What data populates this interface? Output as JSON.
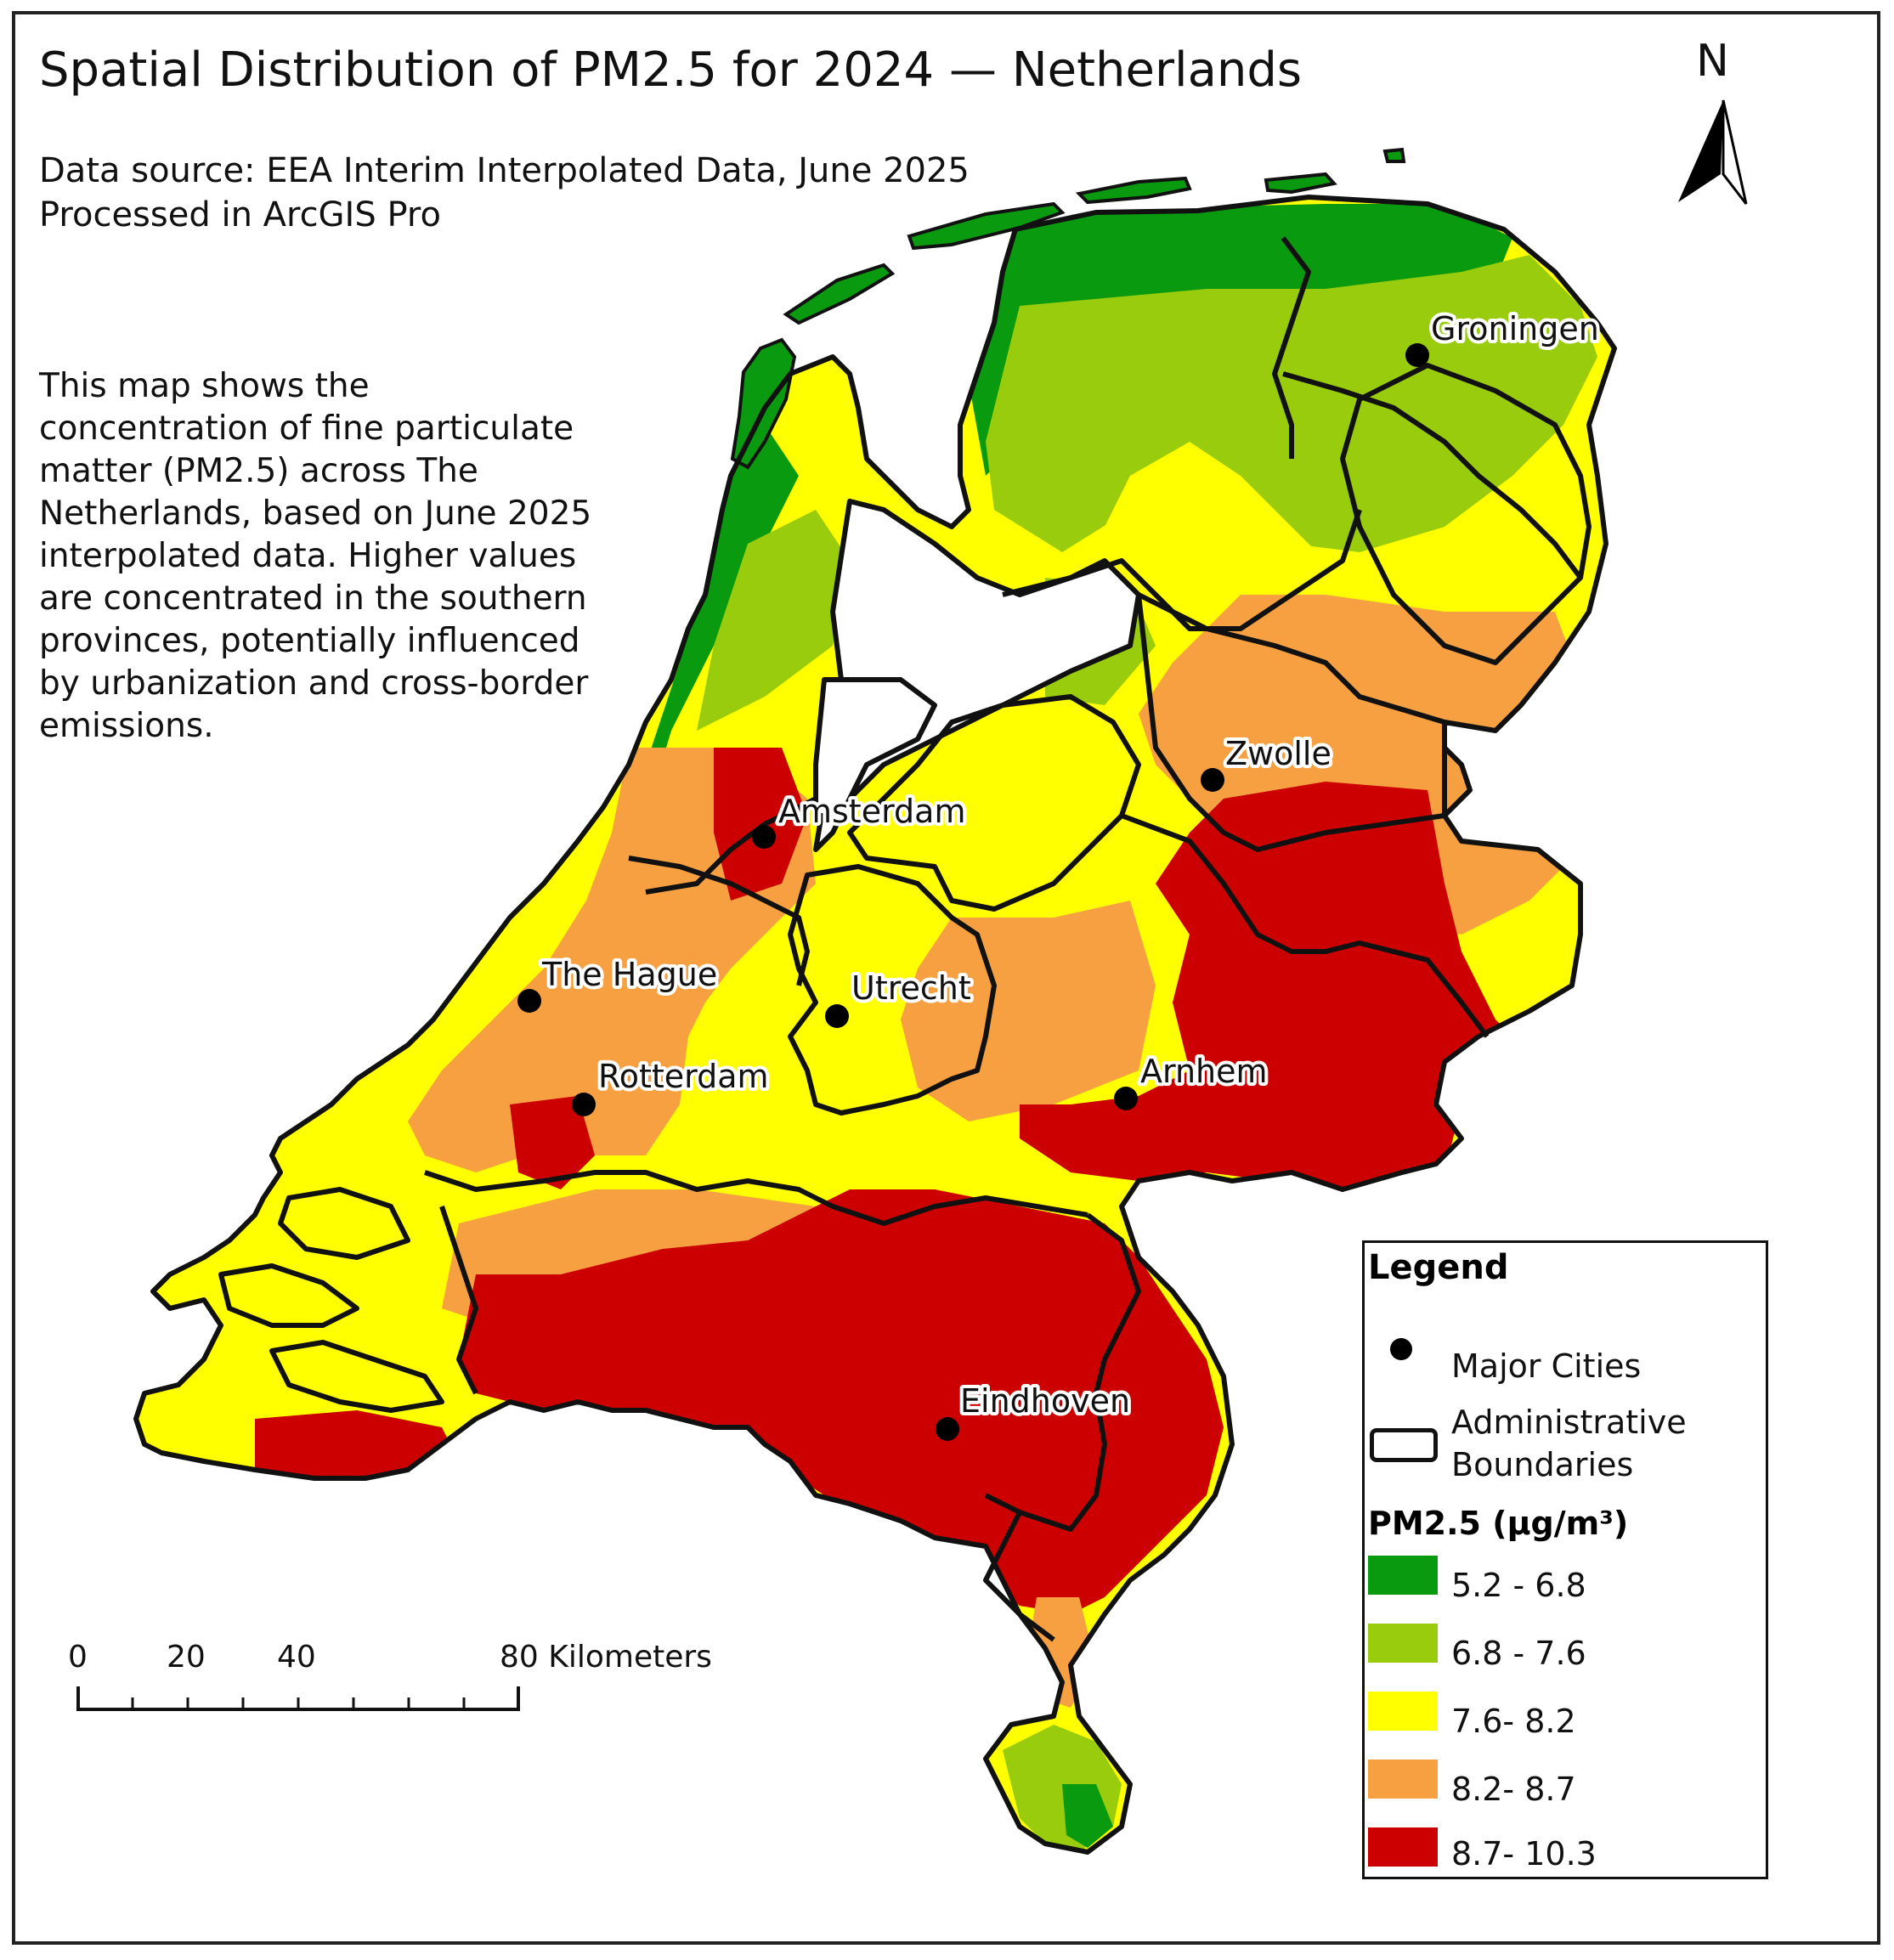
{
  "map": {
    "title": "Spatial Distribution of PM2.5 for 2024 — Netherlands",
    "source_line1": "Data source: EEA Interim Interpolated Data, June 2025",
    "source_line2": "Processed in ArcGIS Pro",
    "description": "This map shows the concentration of fine particulate matter (PM2.5) across The Netherlands, based on June 2025 interpolated data. Higher values are concentrated in the southern provinces, potentially influenced by urbanization and cross-border emissions.",
    "north_label": "N"
  },
  "cities": [
    {
      "name": "Groningen"
    },
    {
      "name": "Zwolle"
    },
    {
      "name": "Amsterdam"
    },
    {
      "name": "The Hague"
    },
    {
      "name": "Utrecht"
    },
    {
      "name": "Rotterdam"
    },
    {
      "name": "Arnhem"
    },
    {
      "name": "Eindhoven"
    }
  ],
  "legend": {
    "title": "Legend",
    "cities_label": "Major Cities",
    "boundaries_label_1": "Administrative",
    "boundaries_label_2": "Boundaries",
    "pm_heading": "PM2.5 (µg/m³)",
    "classes": [
      {
        "label": "5.2 - 6.8",
        "color": "#0a9a0f"
      },
      {
        "label": "6.8 - 7.6",
        "color": "#98cc0c"
      },
      {
        "label": "7.6- 8.2",
        "color": "#ffff00"
      },
      {
        "label": "8.2- 8.7",
        "color": "#f7a042"
      },
      {
        "label": "8.7- 10.3",
        "color": "#cc0000"
      }
    ]
  },
  "scalebar": {
    "ticks": [
      "0",
      "20",
      "40",
      "80 Kilometers"
    ]
  }
}
